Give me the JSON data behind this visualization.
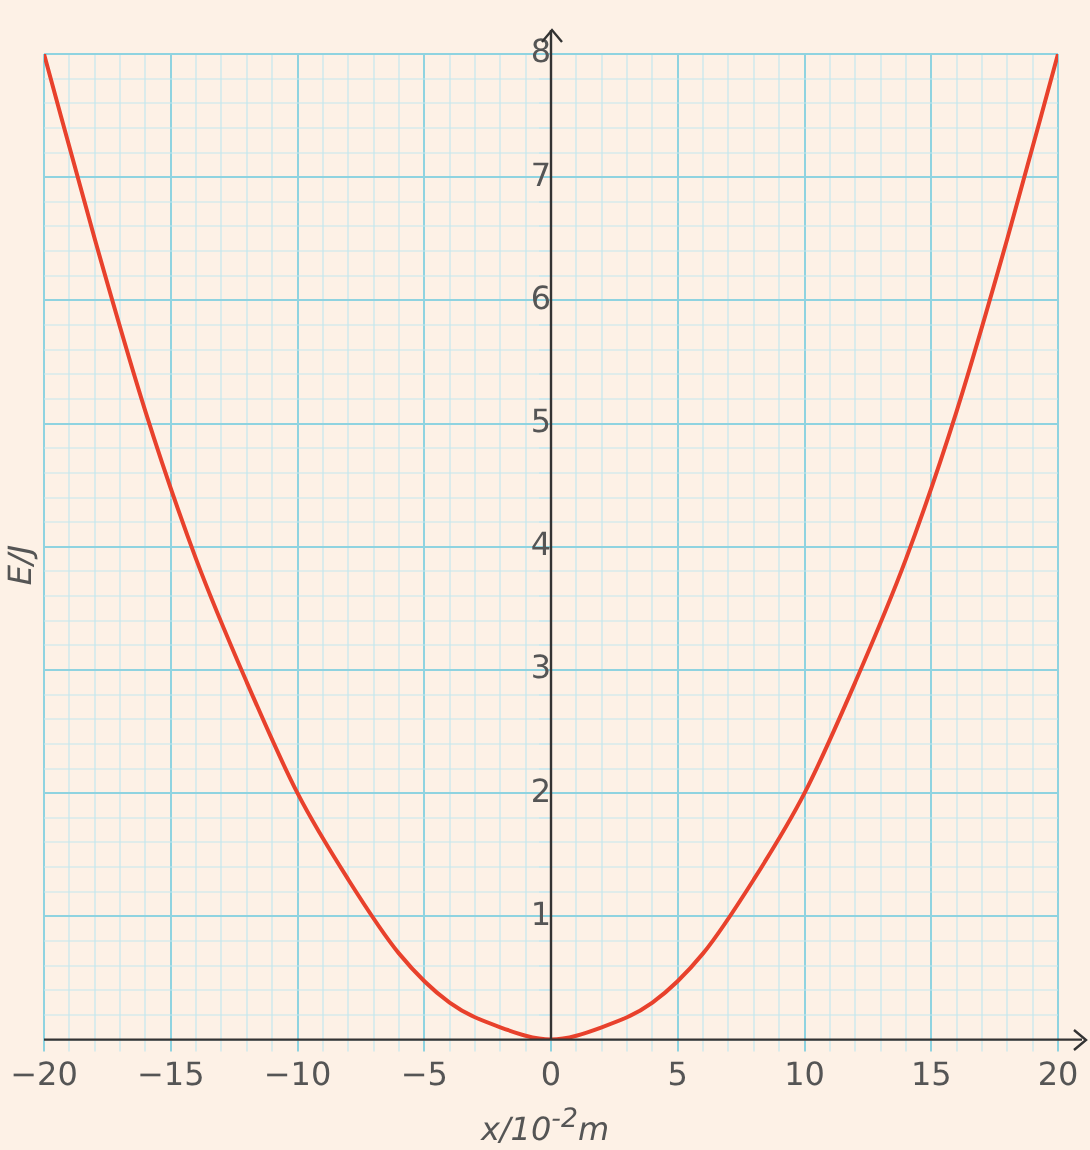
{
  "chart_data": {
    "type": "line",
    "xlabel": "x/10$^{-2}$m",
    "ylabel": "E/J",
    "x": [
      -20,
      -18,
      -16,
      -14,
      -12,
      -10,
      -8,
      -6,
      -4,
      -2,
      0,
      2,
      4,
      6,
      8,
      10,
      12,
      14,
      16,
      18,
      20
    ],
    "series": [
      {
        "color": "#e8412c",
        "values": [
          8,
          6.5,
          5.1,
          3.9,
          2.9,
          2,
          1.3,
          0.7,
          0.3,
          0.1,
          0,
          0.1,
          0.3,
          0.7,
          1.3,
          2,
          2.9,
          3.9,
          5.1,
          6.5,
          8
        ]
      }
    ],
    "xlim": [
      -20,
      20
    ],
    "ylim": [
      0,
      8
    ],
    "xticks": [
      -20,
      {
        "value": -19,
        "label": null
      },
      {
        "value": -18,
        "label": null
      },
      {
        "value": -17,
        "label": null
      },
      {
        "value": -16,
        "label": null
      },
      -15,
      {
        "value": -14,
        "label": null
      },
      {
        "value": -13,
        "label": null
      },
      {
        "value": -12,
        "label": null
      },
      {
        "value": -11,
        "label": null
      },
      -10,
      {
        "value": -9,
        "label": null
      },
      {
        "value": -8,
        "label": null
      },
      {
        "value": -7,
        "label": null
      },
      {
        "value": -6,
        "label": null
      },
      -5,
      {
        "value": -4,
        "label": null
      },
      {
        "value": -3,
        "label": null
      },
      {
        "value": -2,
        "label": null
      },
      {
        "value": -1,
        "label": null
      },
      0,
      {
        "value": 1,
        "label": null
      },
      {
        "value": 2,
        "label": null
      },
      {
        "value": 3,
        "label": null
      },
      {
        "value": 4,
        "label": null
      },
      5,
      {
        "value": 6,
        "label": null
      },
      {
        "value": 7,
        "label": null
      },
      {
        "value": 8,
        "label": null
      },
      {
        "value": 9,
        "label": null
      },
      10,
      {
        "value": 11,
        "label": null
      },
      {
        "value": 12,
        "label": null
      },
      {
        "value": 13,
        "label": null
      },
      {
        "value": 14,
        "label": null
      },
      15,
      {
        "value": 16,
        "label": null
      },
      {
        "value": 17,
        "label": null
      },
      {
        "value": 18,
        "label": null
      },
      {
        "value": 19,
        "label": null
      },
      20
    ],
    "yticks": [
      {
        "value": 0,
        "label": null
      },
      {
        "value": 0.2,
        "label": null
      },
      {
        "value": 0.4,
        "label": null
      },
      {
        "value": 0.6,
        "label": null
      },
      {
        "value": 0.8,
        "label": null
      },
      1,
      {
        "value": 1.2,
        "label": null
      },
      {
        "value": 1.4,
        "label": null
      },
      {
        "value": 1.6,
        "label": null
      },
      {
        "value": 1.8,
        "label": null
      },
      2,
      {
        "value": 2.2,
        "label": null
      },
      {
        "value": 2.4,
        "label": null
      },
      {
        "value": 2.6,
        "label": null
      },
      {
        "value": 2.8,
        "label": null
      },
      3,
      {
        "value": 3.2,
        "label": null
      },
      {
        "value": 3.4,
        "label": null
      },
      {
        "value": 3.6,
        "label": null
      },
      {
        "value": 3.8,
        "label": null
      },
      4,
      {
        "value": 4.2,
        "label": null
      },
      {
        "value": 4.4,
        "label": null
      },
      {
        "value": 4.6,
        "label": null
      },
      {
        "value": 4.8,
        "label": null
      },
      5,
      {
        "value": 5.2,
        "label": null
      },
      {
        "value": 5.4,
        "label": null
      },
      {
        "value": 5.6,
        "label": null
      },
      {
        "value": 5.8,
        "label": null
      },
      6,
      {
        "value": 6.2,
        "label": null
      },
      {
        "value": 6.4,
        "label": null
      },
      {
        "value": 6.6,
        "label": null
      },
      {
        "value": 6.8,
        "label": null
      },
      7,
      {
        "value": 7.2,
        "label": null
      },
      {
        "value": 7.4,
        "label": null
      },
      {
        "value": 7.6,
        "label": null
      },
      {
        "value": 7.8,
        "label": null
      },
      8
    ],
    "grid": true,
    "legend": false,
    "marker": "none",
    "line_style": "solid"
  }
}
